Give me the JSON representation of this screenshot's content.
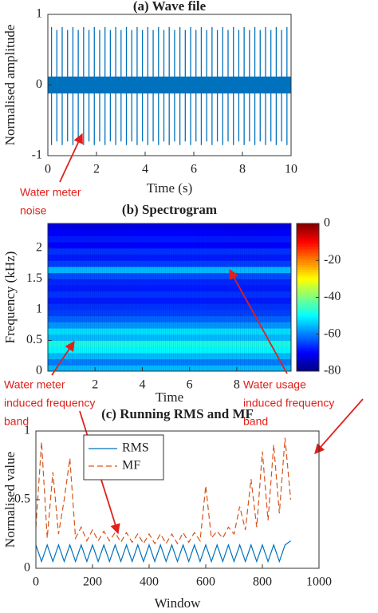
{
  "chart_data": [
    {
      "type": "spikes",
      "title": "(a) Wave file",
      "xlabel": "Time (s)",
      "ylabel": "Normalised amplitude",
      "xlim": [
        0,
        10
      ],
      "xticks": [
        0,
        2,
        4,
        6,
        8,
        10
      ],
      "ylim": [
        -1,
        1
      ],
      "yticks": [
        -1,
        0,
        1
      ],
      "color": "#0072bd",
      "band": [
        -0.12,
        0.12
      ],
      "x": [
        0.15,
        0.37,
        0.59,
        0.81,
        1.03,
        1.25,
        1.47,
        1.69,
        1.91,
        2.13,
        2.35,
        2.57,
        2.79,
        3.01,
        3.23,
        3.45,
        3.67,
        3.89,
        4.11,
        4.33,
        4.55,
        4.77,
        4.99,
        5.21,
        5.43,
        5.65,
        5.87,
        6.09,
        6.31,
        6.53,
        6.75,
        6.97,
        7.19,
        7.41,
        7.63,
        7.85,
        8.07,
        8.29,
        8.51,
        8.73,
        8.95,
        9.17,
        9.39,
        9.61,
        9.83
      ],
      "high": [
        0.82,
        0.78,
        0.82,
        0.78,
        0.82,
        0.78,
        0.82,
        0.78,
        0.82,
        0.78,
        0.82,
        0.78,
        0.82,
        0.78,
        0.82,
        0.78,
        0.82,
        0.78,
        0.82,
        0.78,
        0.82,
        0.78,
        0.82,
        0.78,
        0.82,
        0.78,
        0.82,
        0.78,
        0.82,
        0.78,
        0.82,
        0.78,
        0.82,
        0.78,
        0.82,
        0.78,
        0.82,
        0.78,
        0.82,
        0.78,
        0.82,
        0.78,
        0.82,
        0.78,
        0.82
      ],
      "low": [
        -0.85,
        -0.8,
        -0.85,
        -0.8,
        -0.85,
        -0.8,
        -0.85,
        -0.8,
        -0.85,
        -0.8,
        -0.85,
        -0.8,
        -0.85,
        -0.8,
        -0.85,
        -0.8,
        -0.85,
        -0.8,
        -0.85,
        -0.8,
        -0.85,
        -0.8,
        -0.85,
        -0.8,
        -0.85,
        -0.8,
        -0.85,
        -0.8,
        -0.85,
        -0.8,
        -0.85,
        -0.8,
        -0.85,
        -0.8,
        -0.85,
        -0.8,
        -0.85,
        -0.8,
        -0.85,
        -0.8,
        -0.85,
        -0.8,
        -0.85,
        -0.8,
        -0.85
      ],
      "annotations": [
        {
          "lines": [
            "Water meter",
            "noise"
          ]
        }
      ]
    },
    {
      "type": "heatmap",
      "title": "(b) Spectrogram",
      "xlabel": "Time",
      "ylabel": "Frequency (kHz)",
      "xlim": [
        0,
        10.3
      ],
      "xticks": [
        2,
        4,
        6,
        8
      ],
      "ylim": [
        0,
        2.4
      ],
      "yticks": [
        0,
        0.5,
        1,
        1.5,
        2
      ],
      "clim": [
        -80,
        0
      ],
      "cticks": [
        -80,
        -60,
        -40,
        -20,
        0
      ],
      "colormap": "jet",
      "y": [
        0.05,
        0.15,
        0.25,
        0.35,
        0.45,
        0.55,
        0.65,
        0.75,
        0.85,
        0.95,
        1.05,
        1.15,
        1.25,
        1.35,
        1.45,
        1.55,
        1.65,
        1.75,
        1.85,
        1.95,
        2.05,
        2.15,
        2.25,
        2.35
      ],
      "values": [
        -55,
        -60,
        -55,
        -50,
        -48,
        -55,
        -52,
        -58,
        -62,
        -65,
        -66,
        -68,
        -66,
        -68,
        -67,
        -64,
        -55,
        -65,
        -68,
        -66,
        -70,
        -68,
        -70,
        -72
      ],
      "annotations": [
        {
          "lines": [
            "Water meter",
            "induced frequency",
            "band"
          ]
        },
        {
          "lines": [
            "Water usage",
            "induced frequency",
            "band"
          ]
        }
      ]
    },
    {
      "type": "line",
      "title": "(c) Running RMS and MF",
      "xlabel": "Window",
      "ylabel": "Normalised value",
      "xlim": [
        0,
        1000
      ],
      "xticks": [
        0,
        200,
        400,
        600,
        800,
        1000
      ],
      "ylim": [
        0,
        1
      ],
      "yticks": [
        0,
        0.5,
        1
      ],
      "legend": "upper left",
      "x": [
        0,
        20,
        40,
        60,
        80,
        100,
        120,
        140,
        160,
        180,
        200,
        220,
        240,
        260,
        280,
        300,
        320,
        340,
        360,
        380,
        400,
        420,
        440,
        460,
        480,
        500,
        520,
        540,
        560,
        580,
        600,
        620,
        640,
        660,
        680,
        700,
        720,
        740,
        760,
        780,
        800,
        820,
        840,
        860,
        880,
        900
      ],
      "series": [
        {
          "name": "RMS",
          "color": "#0072bd",
          "style": "solid",
          "values": [
            0.17,
            0.05,
            0.17,
            0.05,
            0.17,
            0.05,
            0.17,
            0.05,
            0.17,
            0.05,
            0.17,
            0.05,
            0.17,
            0.05,
            0.17,
            0.05,
            0.17,
            0.05,
            0.17,
            0.05,
            0.17,
            0.05,
            0.17,
            0.05,
            0.17,
            0.05,
            0.17,
            0.05,
            0.17,
            0.05,
            0.17,
            0.05,
            0.17,
            0.05,
            0.17,
            0.05,
            0.17,
            0.05,
            0.17,
            0.05,
            0.17,
            0.05,
            0.17,
            0.05,
            0.17,
            0.2
          ]
        },
        {
          "name": "MF",
          "color": "#d95319",
          "style": "dashed",
          "values": [
            0.3,
            0.92,
            0.22,
            0.7,
            0.25,
            0.5,
            0.8,
            0.22,
            0.3,
            0.2,
            0.28,
            0.2,
            0.27,
            0.2,
            0.26,
            0.19,
            0.26,
            0.19,
            0.25,
            0.18,
            0.25,
            0.18,
            0.25,
            0.18,
            0.25,
            0.18,
            0.26,
            0.19,
            0.26,
            0.2,
            0.6,
            0.22,
            0.27,
            0.22,
            0.3,
            0.25,
            0.45,
            0.28,
            0.65,
            0.3,
            0.85,
            0.35,
            0.9,
            0.4,
            0.95,
            0.5
          ]
        }
      ]
    }
  ]
}
